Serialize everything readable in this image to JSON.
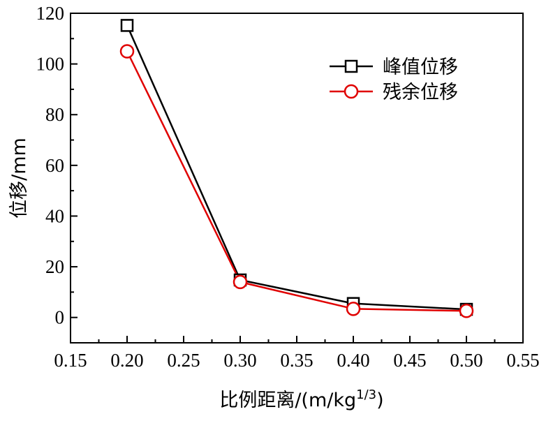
{
  "chart_data": {
    "type": "line",
    "xlabel": "比例距离/(m/kg",
    "xlabel_sup": "1/3",
    "xlabel_close": ")",
    "ylabel": "位移/mm",
    "xlim": [
      0.15,
      0.55
    ],
    "ylim": [
      -10,
      120
    ],
    "x_ticks": [
      "0.15",
      "0.20",
      "0.25",
      "0.30",
      "0.35",
      "0.40",
      "0.45",
      "0.50",
      "0.55"
    ],
    "y_ticks": [
      "0",
      "20",
      "40",
      "60",
      "80",
      "100",
      "120"
    ],
    "x": [
      0.2,
      0.3,
      0.4,
      0.5
    ],
    "grid": false,
    "legend_position": "top-right",
    "series": [
      {
        "name": "峰值位移",
        "values": [
          115.2,
          14.8,
          5.5,
          3.2
        ],
        "color": "#000000",
        "marker": "square"
      },
      {
        "name": "残余位移",
        "values": [
          105.0,
          14.0,
          3.4,
          2.6
        ],
        "color": "#e00000",
        "marker": "circle"
      }
    ]
  }
}
